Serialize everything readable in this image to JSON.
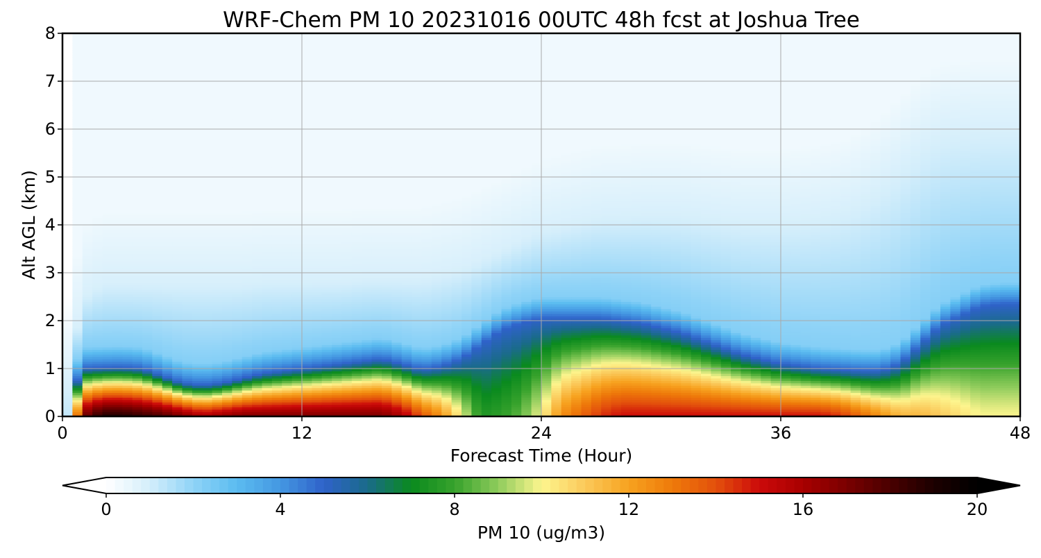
{
  "chart_data": {
    "type": "heatmap",
    "title": "WRF-Chem PM 10  20231016 00UTC 48h fcst at Joshua Tree",
    "xlabel": "Forecast Time (Hour)",
    "ylabel": "Alt AGL (km)",
    "xlim": [
      0,
      48
    ],
    "ylim": [
      0,
      8
    ],
    "xticks": [
      "0",
      "12",
      "24",
      "36",
      "48"
    ],
    "yticks": [
      "0",
      "1",
      "2",
      "3",
      "4",
      "5",
      "6",
      "7",
      "8"
    ],
    "grid": true,
    "colorbar": {
      "label": "PM 10  (ug/m3)",
      "range": [
        0,
        20
      ],
      "ticks": [
        "0",
        "4",
        "8",
        "12",
        "16",
        "20"
      ],
      "extend": "both",
      "stops": [
        {
          "v": 0,
          "color": "#ffffff"
        },
        {
          "v": 1,
          "color": "#d4eefb"
        },
        {
          "v": 2,
          "color": "#8fd3f7"
        },
        {
          "v": 3,
          "color": "#5bbcf0"
        },
        {
          "v": 4,
          "color": "#4497e2"
        },
        {
          "v": 5,
          "color": "#2f62c9"
        },
        {
          "v": 6,
          "color": "#1a6b8a"
        },
        {
          "v": 7,
          "color": "#0a8a1e"
        },
        {
          "v": 8,
          "color": "#37a22c"
        },
        {
          "v": 9,
          "color": "#8fcc5c"
        },
        {
          "v": 10,
          "color": "#fdf58e"
        },
        {
          "v": 11,
          "color": "#fbc95a"
        },
        {
          "v": 12,
          "color": "#f7a21f"
        },
        {
          "v": 13,
          "color": "#ee7a0a"
        },
        {
          "v": 14,
          "color": "#e3500c"
        },
        {
          "v": 15,
          "color": "#cc0a0a"
        },
        {
          "v": 16,
          "color": "#a80000"
        },
        {
          "v": 17,
          "color": "#7a0000"
        },
        {
          "v": 18,
          "color": "#4a0000"
        },
        {
          "v": 19,
          "color": "#1c0000"
        },
        {
          "v": 20,
          "color": "#000000"
        }
      ]
    },
    "estimated_features": {
      "hours": [
        0,
        1,
        2,
        3,
        4,
        5,
        6,
        7,
        8,
        9,
        10,
        11,
        12,
        13,
        14,
        15,
        16,
        17,
        18,
        19,
        20,
        21,
        22,
        23,
        24,
        25,
        26,
        27,
        28,
        29,
        30,
        31,
        32,
        33,
        34,
        35,
        36,
        37,
        38,
        39,
        40,
        41,
        42,
        43,
        44,
        45,
        46,
        47,
        48
      ],
      "surface_peak_ugm3": [
        2.0,
        17.0,
        19.0,
        19.0,
        18.5,
        18.0,
        17.0,
        16.0,
        16.5,
        17.0,
        17.0,
        17.0,
        17.0,
        17.0,
        17.0,
        17.0,
        17.0,
        16.0,
        14.0,
        12.5,
        10.0,
        7.5,
        7.8,
        8.5,
        10.0,
        12.5,
        13.5,
        14.5,
        15.0,
        15.0,
        15.0,
        15.0,
        15.0,
        15.0,
        15.0,
        15.0,
        15.0,
        15.0,
        15.0,
        14.5,
        13.5,
        12.5,
        11.5,
        11.5,
        11.0,
        10.5,
        10.0,
        10.0,
        10.0
      ],
      "boundary_layer_top_km": [
        0.0,
        1.0,
        1.02,
        1.03,
        1.0,
        0.85,
        0.7,
        0.65,
        0.7,
        0.8,
        0.9,
        0.95,
        1.0,
        1.05,
        1.1,
        1.15,
        1.2,
        1.1,
        0.98,
        1.05,
        1.2,
        1.5,
        1.8,
        1.95,
        2.05,
        2.05,
        2.05,
        2.05,
        2.0,
        1.95,
        1.85,
        1.75,
        1.6,
        1.45,
        1.3,
        1.2,
        1.1,
        1.05,
        1.0,
        0.98,
        0.95,
        0.95,
        1.1,
        1.5,
        1.9,
        2.1,
        2.3,
        2.35,
        2.35
      ],
      "hazy_top_km": [
        0.0,
        2.5,
        2.8,
        2.8,
        2.8,
        2.8,
        2.8,
        2.8,
        2.8,
        2.8,
        2.85,
        2.85,
        2.85,
        2.85,
        2.85,
        2.9,
        2.9,
        2.9,
        2.9,
        3.0,
        3.1,
        3.3,
        3.5,
        3.7,
        3.9,
        4.0,
        4.1,
        4.2,
        4.2,
        4.25,
        4.25,
        4.25,
        4.2,
        4.15,
        4.1,
        4.1,
        4.1,
        4.15,
        4.2,
        4.3,
        4.5,
        4.8,
        5.2,
        5.6,
        5.9,
        5.95,
        6.0,
        6.0,
        6.0
      ]
    }
  }
}
